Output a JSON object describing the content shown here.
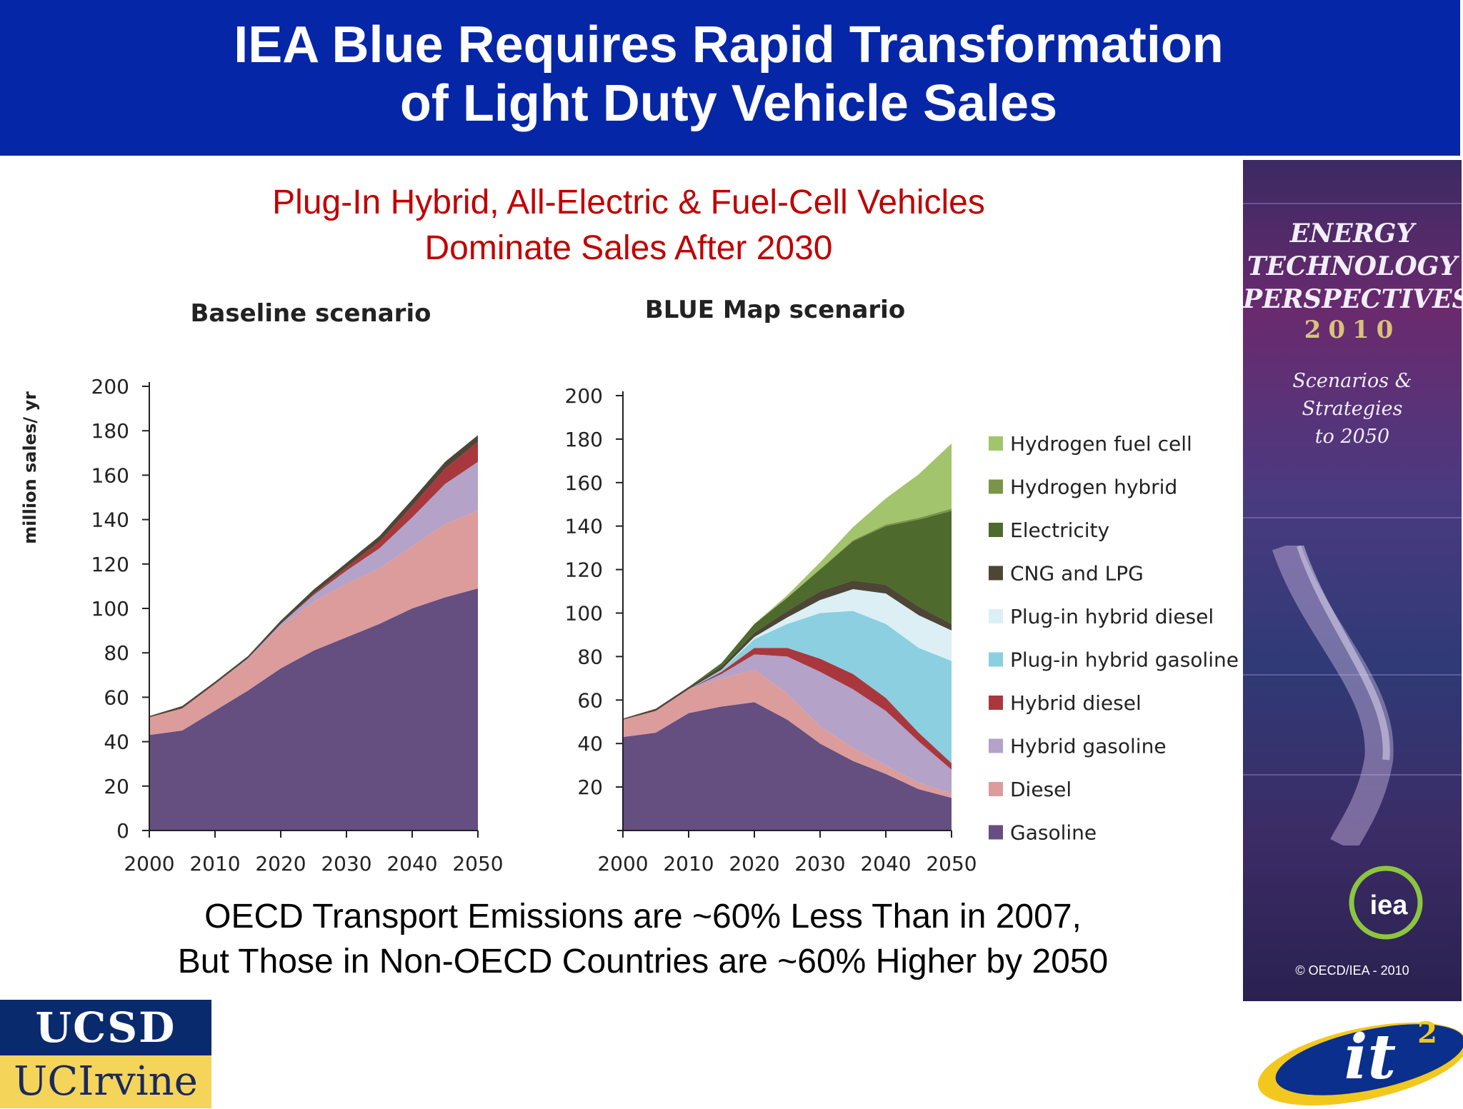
{
  "header": {
    "title_line1": "IEA Blue Requires Rapid Transformation",
    "title_line2": "of Light Duty Vehicle Sales"
  },
  "subtitle": {
    "line1": "Plug-In Hybrid, All-Electric & Fuel-Cell Vehicles",
    "line2": "Dominate Sales After 2030"
  },
  "footer_note": {
    "line1": "OECD Transport Emissions are ~60% Less Than in 2007,",
    "line2": "But Those in Non-OECD Countries are ~60% Higher by 2050"
  },
  "book_cover": {
    "title_lines": [
      "ENERGY",
      "TECHNOLOGY",
      "PERSPECTIVES"
    ],
    "year": "2010",
    "subtitle_lines": [
      "Scenarios &",
      "Strategies",
      "to 2050"
    ],
    "logo_text": "iea",
    "copyright": "© OECD/IEA - 2010"
  },
  "logos": {
    "ucsd": "UCSD",
    "uci": "UCIrvine",
    "it2": "it",
    "it2_sup": "2"
  },
  "colors": {
    "Gasoline": "#654e80",
    "Diesel": "#dc9c9c",
    "Hybrid gasoline": "#b4a2c8",
    "Hybrid diesel": "#a8383d",
    "Plug-in hybrid gasoline": "#8ccfe0",
    "Plug-in hybrid diesel": "#dceff5",
    "CNG and LPG": "#4d4636",
    "Electricity": "#4e6a2c",
    "Hydrogen hybrid": "#7a9448",
    "Hydrogen fuel cell": "#a2c46c"
  },
  "chart_data": [
    {
      "type": "area",
      "stacked": true,
      "title": "Baseline scenario",
      "ylabel": "million sales/ yr",
      "xlabel": "",
      "x": [
        2000,
        2005,
        2010,
        2015,
        2020,
        2025,
        2030,
        2035,
        2040,
        2045,
        2050
      ],
      "xticks": [
        2000,
        2010,
        2020,
        2030,
        2040,
        2050
      ],
      "ylim": [
        0,
        200
      ],
      "yticks": [
        0,
        20,
        40,
        60,
        80,
        100,
        120,
        140,
        160,
        180,
        200
      ],
      "grid": false,
      "series": [
        {
          "name": "Gasoline",
          "values": [
            43,
            45,
            54,
            63,
            73,
            81,
            87,
            93,
            100,
            105,
            109
          ]
        },
        {
          "name": "Diesel",
          "values": [
            8,
            10,
            12,
            14,
            19,
            22,
            24,
            25,
            28,
            33,
            35
          ]
        },
        {
          "name": "Hybrid gasoline",
          "values": [
            0,
            0,
            0,
            0.5,
            1,
            3,
            6,
            9,
            13,
            18,
            22
          ]
        },
        {
          "name": "Hybrid diesel",
          "values": [
            0,
            0,
            0,
            0,
            0,
            0.5,
            1.5,
            3,
            5,
            7,
            9
          ]
        },
        {
          "name": "Plug-in hybrid gasoline",
          "values": [
            0,
            0,
            0,
            0,
            0,
            0,
            0,
            0,
            0,
            0,
            0
          ]
        },
        {
          "name": "Plug-in hybrid diesel",
          "values": [
            0,
            0,
            0,
            0,
            0,
            0,
            0,
            0,
            0,
            0,
            0
          ]
        },
        {
          "name": "CNG and LPG",
          "values": [
            0.5,
            1,
            1,
            1,
            1.5,
            2,
            2,
            2.5,
            3,
            3,
            3
          ]
        },
        {
          "name": "Electricity",
          "values": [
            0,
            0,
            0,
            0,
            0,
            0,
            0,
            0,
            0,
            0,
            0
          ]
        },
        {
          "name": "Hydrogen hybrid",
          "values": [
            0,
            0,
            0,
            0,
            0,
            0,
            0,
            0,
            0,
            0,
            0
          ]
        },
        {
          "name": "Hydrogen fuel cell",
          "values": [
            0,
            0,
            0,
            0,
            0,
            0,
            0,
            0,
            0,
            0,
            0
          ]
        }
      ]
    },
    {
      "type": "area",
      "stacked": true,
      "title": "BLUE Map scenario",
      "xlabel": "",
      "ylabel": "",
      "x": [
        2000,
        2005,
        2010,
        2015,
        2020,
        2025,
        2030,
        2035,
        2040,
        2045,
        2050
      ],
      "xticks": [
        2000,
        2010,
        2020,
        2030,
        2040,
        2050
      ],
      "ylim": [
        0,
        200
      ],
      "yticks": [
        20,
        40,
        60,
        80,
        100,
        120,
        140,
        160,
        180,
        200
      ],
      "grid": false,
      "legend": "right",
      "series": [
        {
          "name": "Gasoline",
          "values": [
            43,
            45,
            54,
            57,
            59,
            51,
            40,
            32,
            26,
            19,
            15
          ]
        },
        {
          "name": "Diesel",
          "values": [
            8,
            10,
            11,
            13,
            15,
            12,
            8,
            6,
            4,
            3,
            2
          ]
        },
        {
          "name": "Hybrid gasoline",
          "values": [
            0,
            0,
            0,
            2,
            7,
            17,
            25,
            27,
            25,
            19,
            11
          ]
        },
        {
          "name": "Hybrid diesel",
          "values": [
            0,
            0,
            0,
            1,
            3,
            4,
            6,
            7,
            6,
            4,
            3
          ]
        },
        {
          "name": "Plug-in hybrid gasoline",
          "values": [
            0,
            0,
            0,
            1,
            4,
            11,
            21,
            29,
            34,
            39,
            47
          ]
        },
        {
          "name": "Plug-in hybrid diesel",
          "values": [
            0,
            0,
            0,
            0,
            1,
            3,
            6,
            10,
            14,
            15,
            14
          ]
        },
        {
          "name": "CNG and LPG",
          "values": [
            0.5,
            1,
            1,
            1.5,
            2,
            3,
            4,
            4,
            4,
            4,
            3
          ]
        },
        {
          "name": "Electricity",
          "values": [
            0,
            0,
            0,
            1.5,
            4,
            6,
            10,
            18,
            27,
            40,
            52
          ]
        },
        {
          "name": "Hydrogen hybrid",
          "values": [
            0,
            0,
            0,
            0,
            0,
            0.2,
            0.3,
            0.5,
            0.7,
            0.8,
            1
          ]
        },
        {
          "name": "Hydrogen fuel cell",
          "values": [
            0,
            0,
            0,
            0,
            0,
            1,
            3,
            6,
            12,
            20,
            30
          ]
        }
      ]
    }
  ]
}
